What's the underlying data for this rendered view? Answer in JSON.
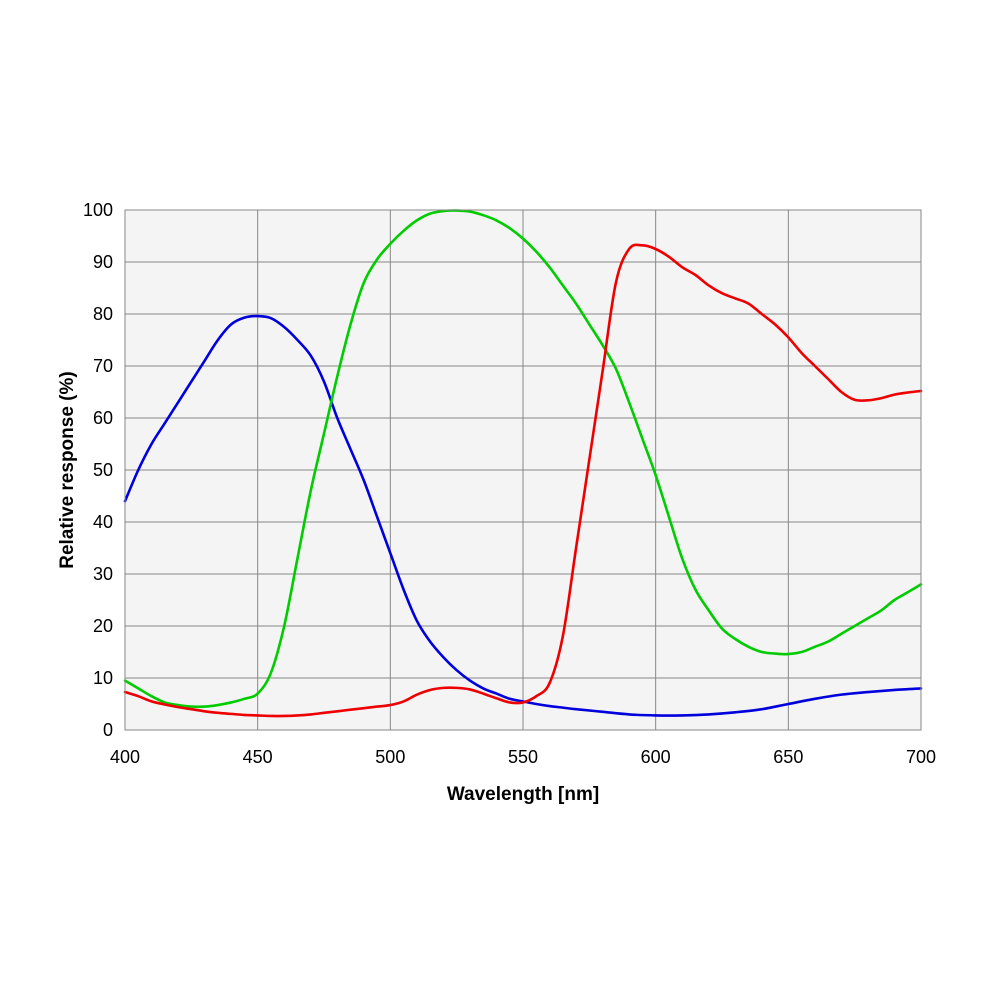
{
  "chart_data": {
    "type": "line",
    "title": "",
    "xlabel": "Wavelength [nm]",
    "ylabel": "Relative response  (%)",
    "xlim": [
      400,
      700
    ],
    "ylim": [
      0,
      100
    ],
    "xticks": [
      400,
      450,
      500,
      550,
      600,
      650,
      700
    ],
    "yticks": [
      0,
      10,
      20,
      30,
      40,
      50,
      60,
      70,
      80,
      90,
      100
    ],
    "xtick_labels": [
      "400",
      "450",
      "500",
      "550",
      "600",
      "650",
      "700"
    ],
    "ytick_labels": [
      "0",
      "10",
      "20",
      "30",
      "40",
      "50",
      "60",
      "70",
      "80",
      "90",
      "100"
    ],
    "grid": true,
    "legend": "none",
    "plot_background": "#f4f4f4",
    "grid_color": "#888888",
    "series": [
      {
        "color": "#0000dd",
        "x": [
          400,
          405,
          410,
          415,
          420,
          425,
          430,
          435,
          440,
          445,
          450,
          455,
          460,
          465,
          470,
          475,
          480,
          485,
          490,
          495,
          500,
          505,
          510,
          515,
          520,
          525,
          530,
          535,
          540,
          545,
          550,
          555,
          560,
          565,
          570,
          580,
          590,
          600,
          610,
          620,
          630,
          640,
          650,
          660,
          670,
          680,
          690,
          700
        ],
        "y": [
          44,
          50,
          55,
          59,
          63,
          67,
          71,
          75,
          78,
          79.3,
          79.6,
          79.2,
          77.5,
          75,
          72,
          67,
          60,
          54,
          48,
          41,
          34,
          27,
          21,
          17,
          14,
          11.5,
          9.5,
          8,
          7,
          6,
          5.5,
          5,
          4.6,
          4.3,
          4.0,
          3.5,
          3.0,
          2.8,
          2.8,
          3.0,
          3.4,
          4.0,
          5.0,
          6.0,
          6.8,
          7.3,
          7.7,
          8.0
        ]
      },
      {
        "color": "#00cc00",
        "x": [
          400,
          405,
          410,
          415,
          420,
          425,
          430,
          435,
          440,
          445,
          450,
          455,
          460,
          465,
          470,
          475,
          480,
          485,
          490,
          495,
          500,
          505,
          510,
          515,
          520,
          525,
          530,
          535,
          540,
          545,
          550,
          555,
          560,
          565,
          570,
          575,
          580,
          585,
          590,
          595,
          600,
          605,
          610,
          615,
          620,
          625,
          630,
          635,
          640,
          645,
          650,
          655,
          660,
          665,
          670,
          675,
          680,
          685,
          690,
          695,
          700
        ],
        "y": [
          9.5,
          8,
          6.5,
          5.3,
          4.8,
          4.5,
          4.5,
          4.8,
          5.3,
          6,
          7,
          11,
          20,
          33,
          46,
          57,
          68,
          78,
          86,
          90.5,
          93.5,
          96,
          98,
          99.3,
          99.8,
          99.9,
          99.7,
          99,
          98,
          96.5,
          94.5,
          92,
          89,
          85.5,
          82,
          78,
          74,
          69.5,
          63,
          56,
          49,
          41,
          33,
          27,
          23,
          19.5,
          17.5,
          16,
          15,
          14.7,
          14.6,
          15,
          16,
          17,
          18.5,
          20,
          21.5,
          23,
          25,
          26.5,
          28
        ]
      },
      {
        "color": "#ee0000",
        "x": [
          400,
          405,
          410,
          415,
          420,
          425,
          430,
          435,
          440,
          445,
          450,
          455,
          460,
          465,
          470,
          475,
          480,
          485,
          490,
          495,
          500,
          505,
          510,
          515,
          520,
          525,
          530,
          535,
          540,
          545,
          550,
          555,
          560,
          565,
          570,
          575,
          580,
          585,
          590,
          595,
          600,
          605,
          610,
          615,
          620,
          625,
          630,
          635,
          640,
          645,
          650,
          655,
          660,
          665,
          670,
          675,
          680,
          685,
          690,
          695,
          700
        ],
        "y": [
          7.3,
          6.5,
          5.5,
          4.9,
          4.4,
          4,
          3.6,
          3.3,
          3.1,
          2.9,
          2.8,
          2.7,
          2.7,
          2.8,
          3.0,
          3.3,
          3.6,
          3.9,
          4.2,
          4.5,
          4.8,
          5.5,
          6.8,
          7.7,
          8.1,
          8.1,
          7.8,
          7,
          6.1,
          5.3,
          5.3,
          6.5,
          9,
          18,
          35,
          52,
          69,
          86,
          92.5,
          93.2,
          92.5,
          91,
          89,
          87.5,
          85.5,
          84,
          83,
          82,
          80,
          78,
          75.5,
          72.5,
          70,
          67.5,
          65,
          63.5,
          63.4,
          63.8,
          64.5,
          64.9,
          65.2
        ]
      }
    ]
  }
}
